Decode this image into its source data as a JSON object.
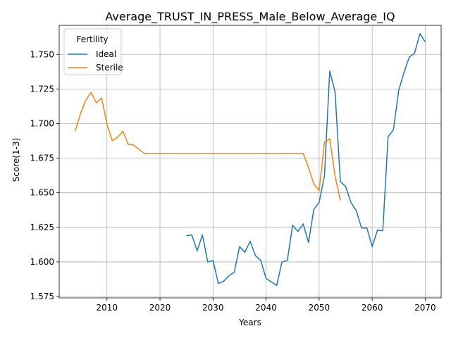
{
  "chart_data": {
    "type": "line",
    "title": "Average_TRUST_IN_PRESS_Male_Below_Average_IQ",
    "xlabel": "Years",
    "ylabel": "Score(1-3)",
    "xlim": [
      2001,
      2073
    ],
    "ylim": [
      1.574,
      1.771
    ],
    "xticks": [
      2010,
      2020,
      2030,
      2040,
      2050,
      2060,
      2070
    ],
    "yticks": [
      1.575,
      1.6,
      1.625,
      1.65,
      1.675,
      1.7,
      1.725,
      1.75
    ],
    "ytick_labels": [
      "1.575",
      "1.600",
      "1.625",
      "1.650",
      "1.675",
      "1.700",
      "1.725",
      "1.750"
    ],
    "grid": true,
    "legend": {
      "title": "Fertility",
      "placement": "top-left"
    },
    "series": [
      {
        "name": "Ideal",
        "color": "#1f77b4",
        "x": [
          2025,
          2026,
          2027,
          2028,
          2029,
          2030,
          2031,
          2032,
          2033,
          2034,
          2035,
          2036,
          2037,
          2038,
          2039,
          2040,
          2041,
          2042,
          2043,
          2044,
          2045,
          2046,
          2047,
          2048,
          2049,
          2050,
          2051,
          2052,
          2053,
          2054,
          2055,
          2056,
          2057,
          2058,
          2059,
          2060,
          2061,
          2062,
          2063,
          2064,
          2065,
          2066,
          2067,
          2068,
          2069,
          2070
        ],
        "y": [
          1.619,
          1.6195,
          1.608,
          1.6195,
          1.6,
          1.601,
          1.5845,
          1.586,
          1.59,
          1.5925,
          1.611,
          1.607,
          1.615,
          1.6045,
          1.601,
          1.588,
          1.5855,
          1.583,
          1.6,
          1.601,
          1.6265,
          1.622,
          1.6275,
          1.614,
          1.638,
          1.643,
          1.662,
          1.738,
          1.723,
          1.658,
          1.6545,
          1.643,
          1.637,
          1.6245,
          1.6245,
          1.611,
          1.623,
          1.6225,
          1.6905,
          1.6955,
          1.724,
          1.737,
          1.748,
          1.751,
          1.765,
          1.759
        ]
      },
      {
        "name": "Sterile",
        "color": "#ff7f0e",
        "x": [
          2004,
          2005,
          2006,
          2007,
          2008,
          2009,
          2010,
          2011,
          2012,
          2013,
          2014,
          2015,
          2016,
          2017,
          2018,
          2019,
          2020,
          2021,
          2022,
          2023,
          2024,
          2025,
          2026,
          2027,
          2028,
          2029,
          2030,
          2031,
          2032,
          2033,
          2034,
          2035,
          2036,
          2037,
          2038,
          2039,
          2040,
          2041,
          2042,
          2043,
          2044,
          2045,
          2046,
          2047,
          2048,
          2049,
          2050,
          2051,
          2052,
          2053,
          2054
        ],
        "y": [
          1.6945,
          1.707,
          1.717,
          1.7225,
          1.715,
          1.7185,
          1.6995,
          1.6875,
          1.69,
          1.6945,
          1.685,
          1.6845,
          1.6815,
          1.6785,
          1.6785,
          1.6785,
          1.6785,
          1.6785,
          1.6785,
          1.6785,
          1.6785,
          1.6785,
          1.6785,
          1.6785,
          1.6785,
          1.6785,
          1.6785,
          1.6785,
          1.6785,
          1.6785,
          1.6785,
          1.6785,
          1.6785,
          1.6785,
          1.6785,
          1.6785,
          1.6785,
          1.6785,
          1.6785,
          1.6785,
          1.6785,
          1.6785,
          1.6785,
          1.6785,
          1.668,
          1.6565,
          1.6515,
          1.6865,
          1.689,
          1.662,
          1.6445
        ]
      }
    ]
  }
}
